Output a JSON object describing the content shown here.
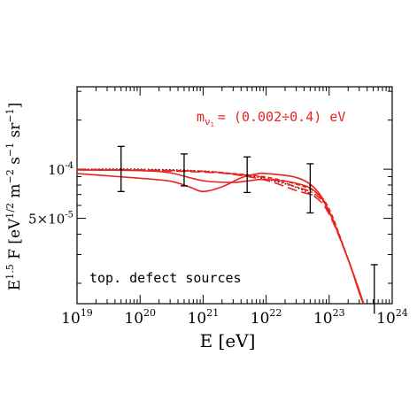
{
  "chart_data": {
    "type": "line",
    "x_scale": "log",
    "y_scale": "log",
    "xlim": [
      1e+19,
      1e+24
    ],
    "ylim": [
      1.5e-05,
      0.00032
    ],
    "xlabel": "E [eV]",
    "ylabel": "E^1.5 F [eV^1/2 m^-2 s^-1 sr^-1]",
    "x_ticks": [
      {
        "value": 1e+19,
        "base": "10",
        "exp": "19"
      },
      {
        "value": 1e+20,
        "base": "10",
        "exp": "20"
      },
      {
        "value": 1e+21,
        "base": "10",
        "exp": "21"
      },
      {
        "value": 1e+22,
        "base": "10",
        "exp": "22"
      },
      {
        "value": 1e+23,
        "base": "10",
        "exp": "23"
      },
      {
        "value": 1e+24,
        "base": "10",
        "exp": "24"
      }
    ],
    "y_ticks": [
      {
        "value": 0.0001,
        "base": "10",
        "exp": "-4"
      },
      {
        "value": 5e-05,
        "base": "5×10",
        "exp": "-5"
      }
    ],
    "annotations": {
      "mass_label_main": "m",
      "mass_label_sub": "ν",
      "mass_label_subsub": "1",
      "mass_label_value": "= (0.002÷0.4) eV",
      "source_label": "top. defect sources"
    },
    "colors": {
      "model": "#e8231f",
      "reference": "#000000",
      "data": "#000000"
    },
    "series": [
      {
        "style": "dotted",
        "color": "#000000",
        "x": [
          1e+19,
          1e+20,
          1e+21,
          5e+21,
          1e+22,
          3e+22,
          6e+22
        ],
        "y": [
          0.0001,
          0.0001,
          9.75e-05,
          9.15e-05,
          8.7e-05,
          7.75e-05,
          6.8e-05
        ]
      },
      {
        "style": "solid",
        "color": "#e8231f",
        "x": [
          1e+19,
          1e+20,
          3e+20,
          6e+20,
          1e+21,
          2e+21,
          4e+21,
          7e+21,
          1e+22,
          3e+22,
          6e+22,
          1e+23,
          2e+23,
          3e+23,
          4e+23
        ],
        "y": [
          9.4e-05,
          8.8e-05,
          8.45e-05,
          7.8e-05,
          7.3e-05,
          7.8e-05,
          8.85e-05,
          9.35e-05,
          9.4e-05,
          8.9e-05,
          7.6e-05,
          5.5e-05,
          2.8e-05,
          1.75e-05,
          1.3e-05
        ]
      },
      {
        "style": "solid",
        "color": "#e8231f",
        "x": [
          1e+19,
          1e+20,
          3e+20,
          1e+21,
          3e+21,
          6e+21,
          1e+22,
          3e+22,
          6e+22,
          1e+23,
          2e+23,
          4e+23
        ],
        "y": [
          9.9e-05,
          9.8e-05,
          9.5e-05,
          8.5e-05,
          8.3e-05,
          8.55e-05,
          8.65e-05,
          8.2e-05,
          7.3e-05,
          5.5e-05,
          2.8e-05,
          1.3e-05
        ]
      },
      {
        "style": "longdash",
        "color": "#e8231f",
        "x": [
          1e+19,
          1e+20,
          1e+21,
          3e+21,
          1e+22,
          3e+22,
          6e+22,
          1e+23,
          2e+23,
          4e+23
        ],
        "y": [
          9.95e-05,
          9.85e-05,
          9.6e-05,
          9.3e-05,
          8.55e-05,
          7.4e-05,
          6.75e-05,
          5.3e-05,
          2.8e-05,
          1.3e-05
        ]
      },
      {
        "style": "dashdot",
        "color": "#e8231f",
        "x": [
          1e+19,
          1e+20,
          1e+21,
          3e+21,
          1e+22,
          3e+22,
          6e+22,
          1e+23,
          2e+23,
          4e+23
        ],
        "y": [
          9.95e-05,
          9.9e-05,
          9.7e-05,
          9.35e-05,
          8.85e-05,
          7.8e-05,
          7e-05,
          5.5e-05,
          2.8e-05,
          1.3e-05
        ]
      },
      {
        "style": "dashed",
        "color": "#e8231f",
        "x": [
          1e+19,
          1e+20,
          1e+21,
          3e+21,
          1e+22,
          3e+22,
          6e+22,
          1e+23,
          2e+23,
          4e+23
        ],
        "y": [
          9.95e-05,
          9.9e-05,
          9.7e-05,
          9.4e-05,
          8.95e-05,
          8.1e-05,
          7.25e-05,
          5.7e-05,
          2.8e-05,
          1.3e-05
        ]
      }
    ],
    "error_bars": [
      {
        "x": 5e+19,
        "y": 0.0001,
        "y_low": 7.3e-05,
        "y_high": 0.000138,
        "cap": "both"
      },
      {
        "x": 5e+20,
        "y": 9.8e-05,
        "y_low": 7.9e-05,
        "y_high": 0.000124,
        "cap": "both"
      },
      {
        "x": 5e+21,
        "y": 9.2e-05,
        "y_low": 7.2e-05,
        "y_high": 0.000119,
        "cap": "both"
      },
      {
        "x": 5e+22,
        "y": 7.95e-05,
        "y_low": 5.4e-05,
        "y_high": 0.000108,
        "cap": "both"
      },
      {
        "x": 5.2e+23,
        "y": null,
        "y_low": 1.3e-05,
        "y_high": 2.6e-05,
        "cap": "top"
      }
    ]
  }
}
